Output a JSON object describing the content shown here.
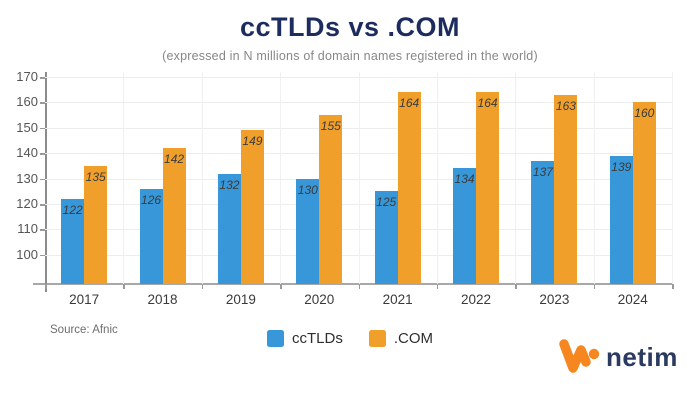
{
  "header": {
    "title": "ccTLDs vs .COM",
    "subtitle": "(expressed in N millions of domain names registered in the world)"
  },
  "chart_data": {
    "type": "bar",
    "categories": [
      "2017",
      "2018",
      "2019",
      "2020",
      "2021",
      "2022",
      "2023",
      "2024"
    ],
    "series": [
      {
        "name": "ccTLDs",
        "color": "#3797d8",
        "values": [
          122,
          126,
          132,
          130,
          125,
          134,
          137,
          139
        ]
      },
      {
        "name": ".COM",
        "color": "#f0a02a",
        "values": [
          135,
          142,
          149,
          155,
          164,
          164,
          163,
          160
        ]
      }
    ],
    "title": "ccTLDs vs .COM",
    "subtitle": "(expressed in N millions of domain names registered in the world)",
    "xlabel": "",
    "ylabel": "",
    "ylim": [
      88.5,
      172
    ],
    "yticks": [
      100,
      110,
      120,
      130,
      140,
      150,
      160,
      170
    ],
    "grid": true,
    "bar_value_labels": true,
    "legend_position": "bottom"
  },
  "footer": {
    "source": "Source: Afnic"
  },
  "logo": {
    "text": "netim",
    "mark": "netim-swoosh",
    "orange": "#f6861f",
    "navy": "#2b3a60"
  },
  "colors": {
    "title": "#1c2c5e",
    "subtitle": "#878787",
    "cctld_blue": "#3797d8",
    "com_orange": "#f0a02a",
    "axis": "#a8a8a8",
    "gridline": "#ededed",
    "background": "#ffffff"
  }
}
